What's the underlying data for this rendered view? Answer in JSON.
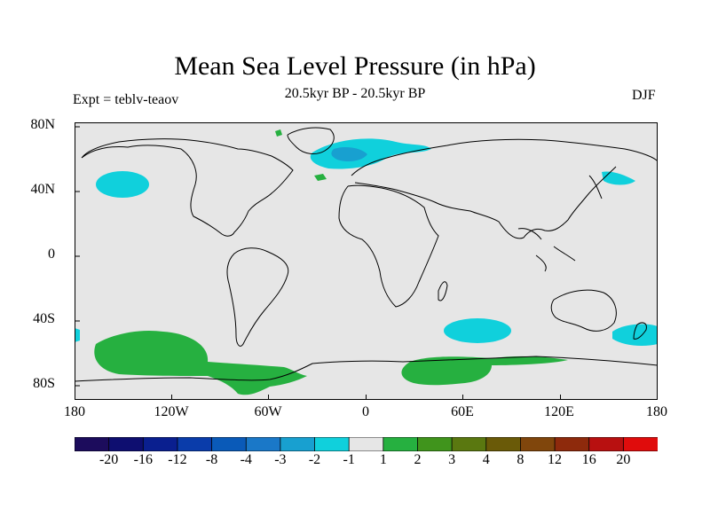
{
  "title": "Mean Sea Level Pressure (in hPa)",
  "subtitle": "20.5kyr BP - 20.5kyr BP",
  "left_label": "Expt = teblv-teaov",
  "right_label": "DJF",
  "lat_labels": [
    "80N",
    "40N",
    "0",
    "40S",
    "80S"
  ],
  "lon_labels": [
    "180",
    "120W",
    "60W",
    "0",
    "60E",
    "120E",
    "180"
  ],
  "colorbar": {
    "colors": [
      "#1c0c5c",
      "#0e0e70",
      "#0a1f8f",
      "#0a3caa",
      "#0a5ab8",
      "#1a78c8",
      "#18a0d0",
      "#10d0dc",
      "#e6e6e6",
      "#26b040",
      "#40941c",
      "#5a7810",
      "#6a5a08",
      "#80460c",
      "#8e2a0c",
      "#b81010",
      "#e00c0c"
    ],
    "labels": [
      "-20",
      "-16",
      "-12",
      "-8",
      "-4",
      "-3",
      "-2",
      "-1",
      "1",
      "2",
      "3",
      "4",
      "8",
      "12",
      "16",
      "20"
    ]
  },
  "colors": {
    "land_ocean_fill": "#e6e6e6",
    "negative_anomaly": "#10d0dc",
    "positive_anomaly": "#26b040",
    "strong_negative": "#18a0d0"
  }
}
